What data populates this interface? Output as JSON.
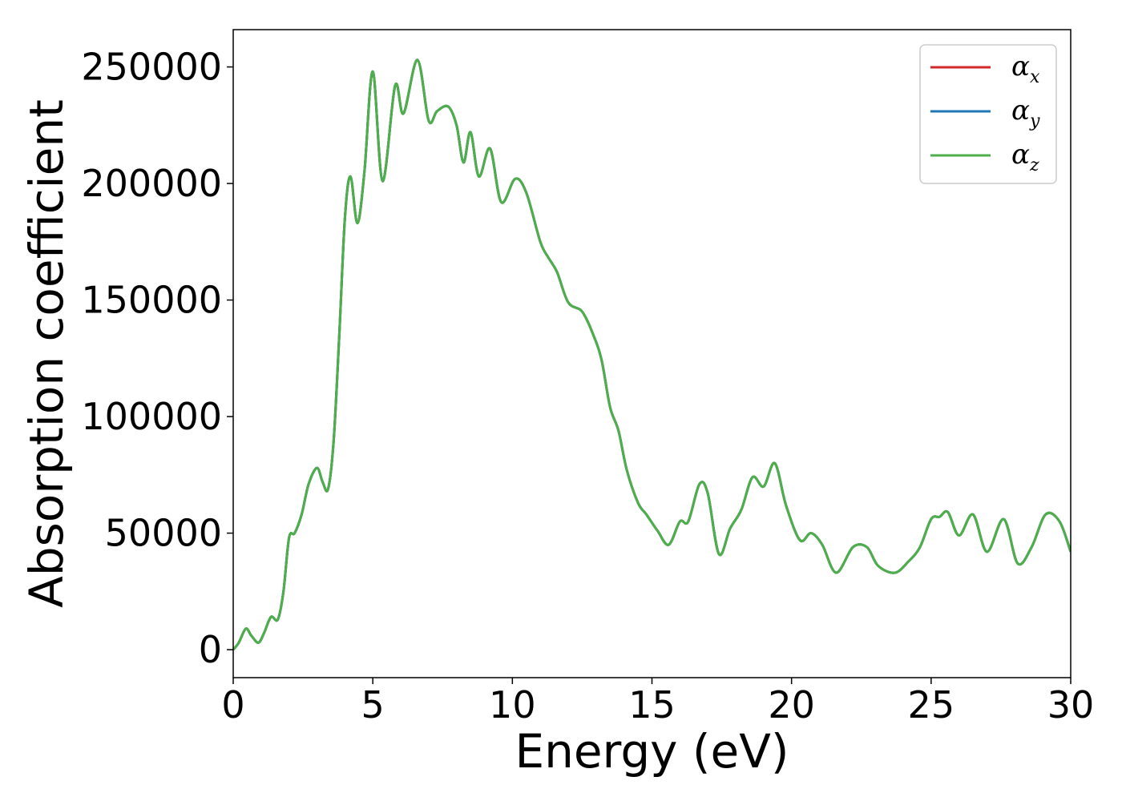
{
  "chart_data": {
    "type": "line",
    "xlabel": "Energy (eV)",
    "ylabel": "Absorption coefficient",
    "xlim": [
      0,
      30
    ],
    "ylim": [
      -12000,
      266000
    ],
    "x_ticks": [
      "0",
      "5",
      "10",
      "15",
      "20",
      "25",
      "30"
    ],
    "y_ticks": [
      "0",
      "50000",
      "100000",
      "150000",
      "200000",
      "250000"
    ],
    "legend_position": "top-right",
    "grid": false,
    "series": [
      {
        "name": "α_x",
        "legend_base": "α",
        "legend_sub": "x",
        "color": "#d62728",
        "x": [
          0,
          0.2,
          0.45,
          0.65,
          0.9,
          1.1,
          1.35,
          1.6,
          1.8,
          2.0,
          2.2,
          2.45,
          2.7,
          3.0,
          3.2,
          3.4,
          3.6,
          3.8,
          4.0,
          4.2,
          4.45,
          4.7,
          5.0,
          5.35,
          5.8,
          6.1,
          6.6,
          7.0,
          7.3,
          7.7,
          8.0,
          8.25,
          8.5,
          8.8,
          9.2,
          9.6,
          10.1,
          10.5,
          11.0,
          11.3,
          11.6,
          12.0,
          12.5,
          12.9,
          13.2,
          13.5,
          13.8,
          14.1,
          14.5,
          14.8,
          15.2,
          15.6,
          16.0,
          16.3,
          16.7,
          17.0,
          17.4,
          17.8,
          18.2,
          18.6,
          19.0,
          19.4,
          19.8,
          20.3,
          20.7,
          21.1,
          21.6,
          22.2,
          22.7,
          23.1,
          23.7,
          24.2,
          24.6,
          25.0,
          25.3,
          25.6,
          26.0,
          26.5,
          27.0,
          27.6,
          28.1,
          28.6,
          29.1,
          29.6,
          30.0
        ],
        "values": [
          0,
          3000,
          9000,
          6000,
          3000,
          7000,
          14000,
          13000,
          25000,
          48000,
          50000,
          58000,
          71000,
          78000,
          72000,
          69000,
          90000,
          135000,
          185000,
          203000,
          183000,
          205000,
          248000,
          201000,
          242000,
          230000,
          253000,
          227000,
          231000,
          233000,
          225000,
          209000,
          222000,
          203000,
          215000,
          192000,
          202000,
          196000,
          175000,
          168000,
          162000,
          149000,
          145000,
          135000,
          124000,
          104000,
          94000,
          77000,
          63000,
          58000,
          51000,
          45000,
          55000,
          55000,
          71000,
          67000,
          41000,
          52000,
          60000,
          74000,
          70000,
          80000,
          62000,
          47000,
          50000,
          45000,
          33000,
          44000,
          44000,
          36000,
          33000,
          38000,
          44000,
          56000,
          57000,
          59000,
          49000,
          58000,
          42000,
          56000,
          37000,
          44000,
          58000,
          55000,
          42000
        ]
      },
      {
        "name": "α_y",
        "legend_base": "α",
        "legend_sub": "y",
        "color": "#1f77b4",
        "same_as": 0
      },
      {
        "name": "α_z",
        "legend_base": "α",
        "legend_sub": "z",
        "color": "#4daf4a",
        "same_as": 0
      }
    ]
  }
}
